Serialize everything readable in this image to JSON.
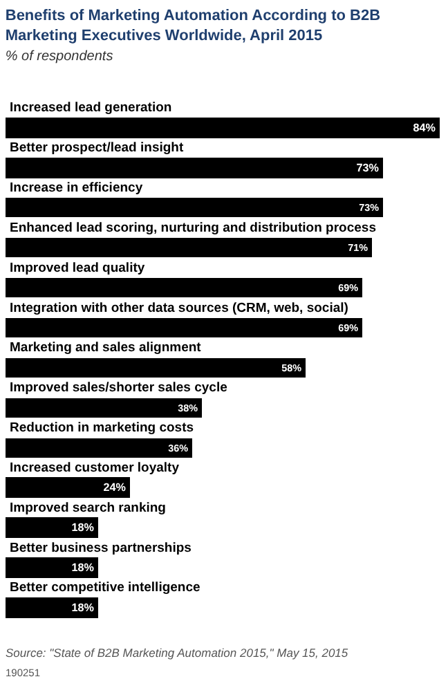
{
  "chart_data": {
    "type": "bar",
    "orientation": "horizontal",
    "title": "Benefits of Marketing Automation According to B2B Marketing Executives Worldwide, April 2015",
    "subtitle": "% of respondents",
    "categories": [
      "Increased lead generation",
      "Better prospect/lead insight",
      "Increase in efficiency",
      "Enhanced lead scoring, nurturing and distribution process",
      "Improved lead quality",
      "Integration with other data sources (CRM, web, social)",
      "Marketing and sales alignment",
      "Improved sales/shorter sales cycle",
      "Reduction in marketing costs",
      "Increased customer loyalty",
      "Improved search ranking",
      "Better business partnerships",
      "Better competitive intelligence"
    ],
    "values": [
      84,
      73,
      73,
      71,
      69,
      69,
      58,
      38,
      36,
      24,
      18,
      18,
      18
    ],
    "color": "#000000",
    "value_labels": [
      "84%",
      "73%",
      "73%",
      "71%",
      "69%",
      "69%",
      "58%",
      "38%",
      "36%",
      "24%",
      "18%",
      "18%",
      "18%"
    ],
    "annotations": [
      "Source: \"State of B2B Marketing Automation 2015,\" May 15, 2015",
      "190251"
    ]
  }
}
